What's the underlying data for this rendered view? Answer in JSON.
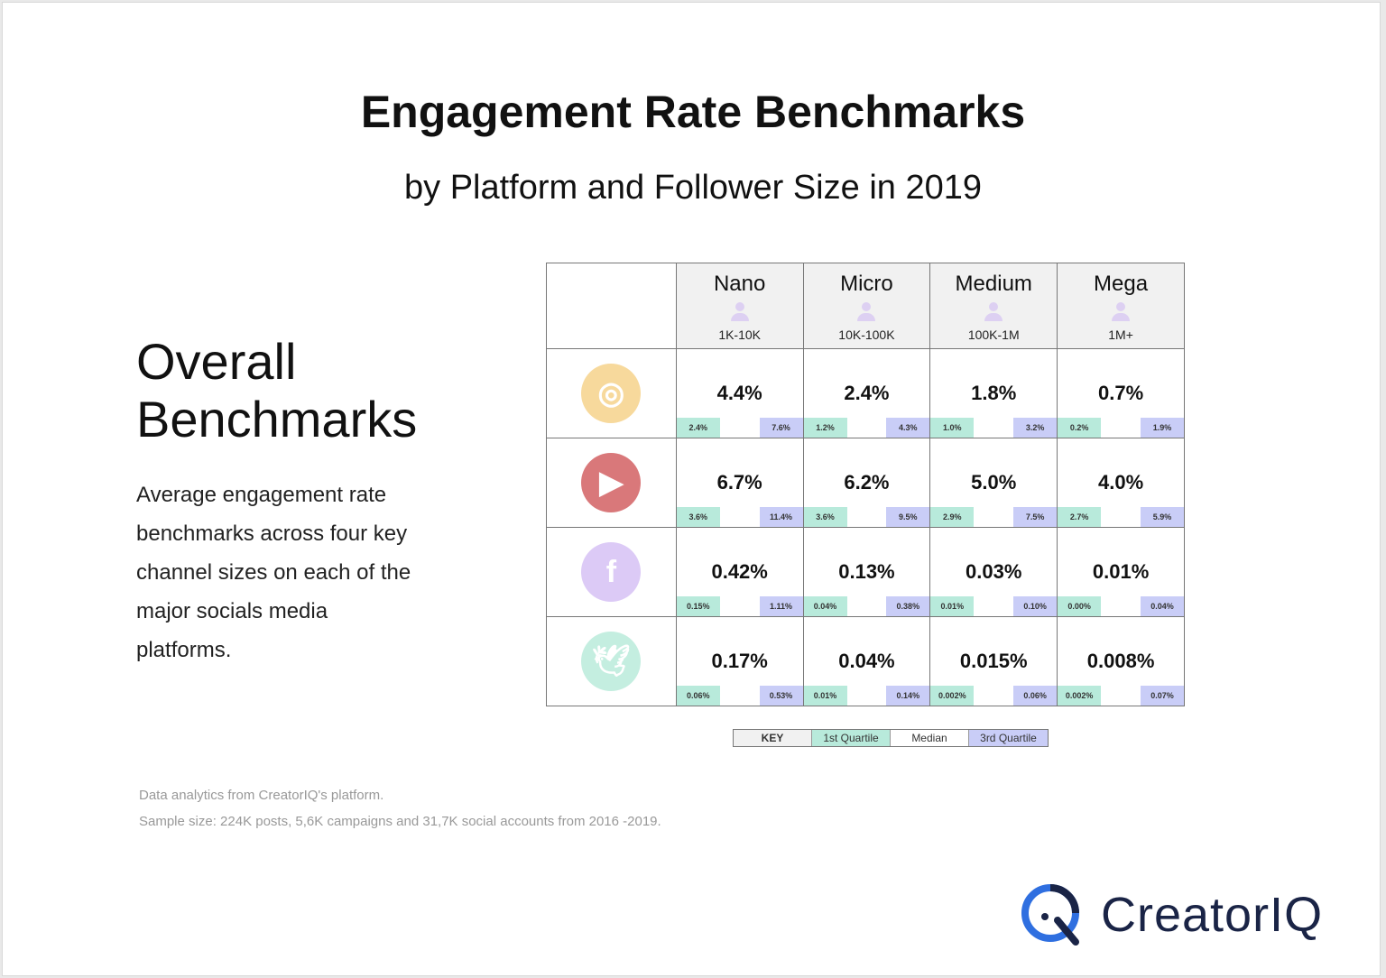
{
  "title": "Engagement Rate Benchmarks",
  "subtitle": "by Platform and Follower Size in 2019",
  "overall": {
    "line1": "Overall",
    "line2": "Benchmarks"
  },
  "description": "Average engagement rate benchmarks across four key channel sizes on each of the major socials media platforms.",
  "colors": {
    "q1": "#b8eadb",
    "q3": "#c9cdf7",
    "instagram": "#f7d99c",
    "youtube": "#d9787a",
    "facebook": "#dccaf6",
    "twitter": "#c4eee0"
  },
  "chart_data": {
    "type": "table",
    "columns": [
      {
        "name": "Nano",
        "range": "1K-10K"
      },
      {
        "name": "Micro",
        "range": "10K-100K"
      },
      {
        "name": "Medium",
        "range": "100K-1M"
      },
      {
        "name": "Mega",
        "range": "1M+"
      }
    ],
    "rows": [
      {
        "platform": "instagram",
        "icon": "instagram-icon",
        "cells": [
          {
            "median": "4.4%",
            "q1": "2.4%",
            "q3": "7.6%"
          },
          {
            "median": "2.4%",
            "q1": "1.2%",
            "q3": "4.3%"
          },
          {
            "median": "1.8%",
            "q1": "1.0%",
            "q3": "3.2%"
          },
          {
            "median": "0.7%",
            "q1": "0.2%",
            "q3": "1.9%"
          }
        ]
      },
      {
        "platform": "youtube",
        "icon": "youtube-icon",
        "cells": [
          {
            "median": "6.7%",
            "q1": "3.6%",
            "q3": "11.4%"
          },
          {
            "median": "6.2%",
            "q1": "3.6%",
            "q3": "9.5%"
          },
          {
            "median": "5.0%",
            "q1": "2.9%",
            "q3": "7.5%"
          },
          {
            "median": "4.0%",
            "q1": "2.7%",
            "q3": "5.9%"
          }
        ]
      },
      {
        "platform": "facebook",
        "icon": "facebook-icon",
        "cells": [
          {
            "median": "0.42%",
            "q1": "0.15%",
            "q3": "1.11%"
          },
          {
            "median": "0.13%",
            "q1": "0.04%",
            "q3": "0.38%"
          },
          {
            "median": "0.03%",
            "q1": "0.01%",
            "q3": "0.10%"
          },
          {
            "median": "0.01%",
            "q1": "0.00%",
            "q3": "0.04%"
          }
        ]
      },
      {
        "platform": "twitter",
        "icon": "twitter-icon",
        "cells": [
          {
            "median": "0.17%",
            "q1": "0.06%",
            "q3": "0.53%"
          },
          {
            "median": "0.04%",
            "q1": "0.01%",
            "q3": "0.14%"
          },
          {
            "median": "0.015%",
            "q1": "0.002%",
            "q3": "0.06%"
          },
          {
            "median": "0.008%",
            "q1": "0.002%",
            "q3": "0.07%"
          }
        ]
      }
    ],
    "key": [
      "KEY",
      "1st Quartile",
      "Median",
      "3rd Quartile"
    ]
  },
  "footnotes": [
    "Data analytics from CreatorIQ's platform.",
    "Sample size: 224K posts, 5,6K campaigns and 31,7K social accounts from 2016 -2019."
  ],
  "logo": "CreatorIQ"
}
